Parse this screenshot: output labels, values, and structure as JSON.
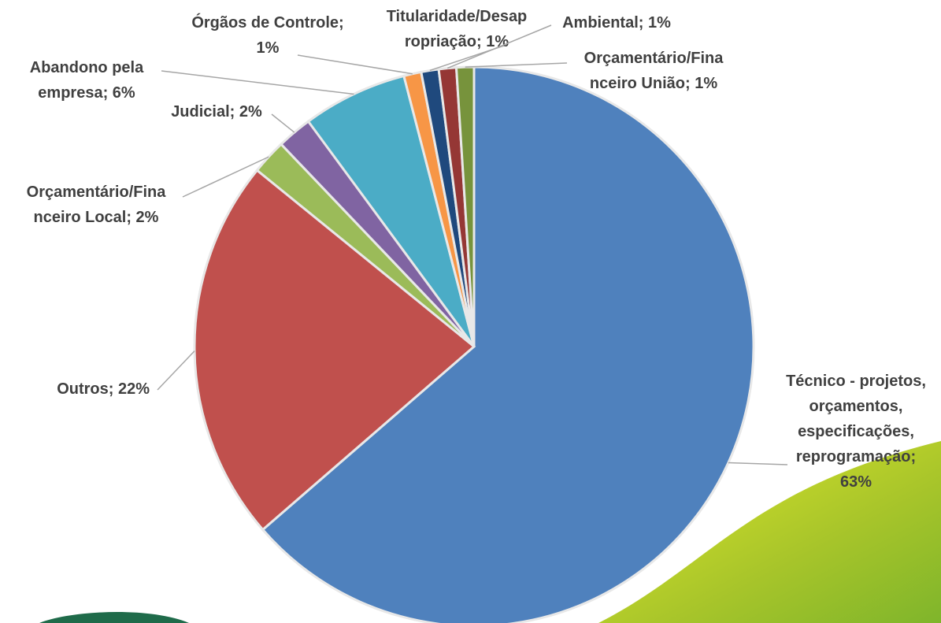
{
  "chart_data": {
    "type": "pie",
    "values": [
      63,
      22,
      2,
      2,
      6,
      1,
      1,
      1,
      1
    ],
    "value_labels": [
      "Técnico - projetos,\norçamentos,\nespecificações,\nreprogramação;\n63%",
      "Outros; 22%",
      "Orçamentário/Fina\nnceiro Local; 2%",
      "Judicial; 2%",
      "Abandono pela\nempresa; 6%",
      "Órgãos de Controle;\n1%",
      "Titularidade/Desap\nropriação; 1%",
      "Ambiental; 1%",
      "Orçamentário/Fina\nnceiro União; 1%"
    ],
    "colors": [
      "#4f81bd",
      "#c0504d",
      "#9bbb59",
      "#8064a2",
      "#4bacc6",
      "#f79646",
      "#1f497d",
      "#953735",
      "#77933c"
    ]
  }
}
